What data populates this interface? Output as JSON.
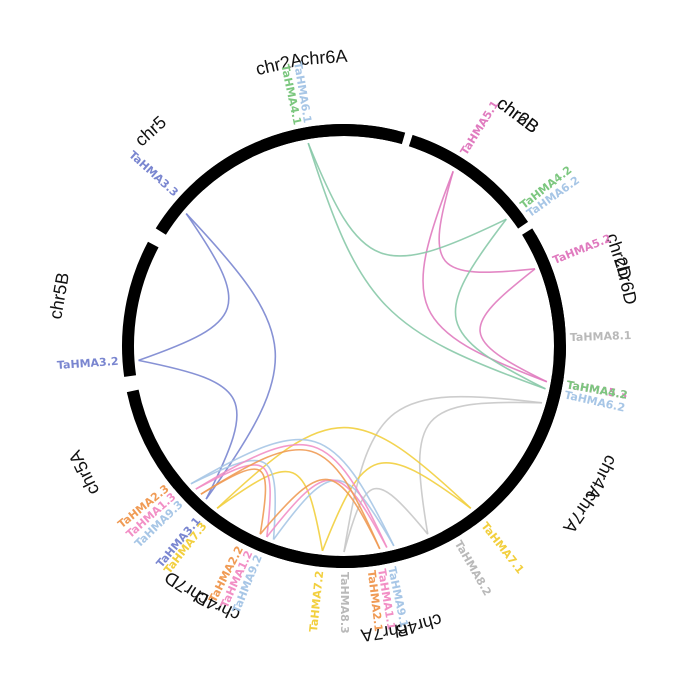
{
  "chromosomes": [
    {
      "name": "chr2A",
      "start": 318,
      "end": 376
    },
    {
      "name": "chr2B",
      "start": 380,
      "end": 414
    },
    {
      "name": "chr2D",
      "start": 418,
      "end": 446
    },
    {
      "name": "chr4A",
      "start": 450,
      "end": 504
    },
    {
      "name": "chr4B",
      "start": 508,
      "end": 542
    },
    {
      "name": "chr4D",
      "start": 546,
      "end": 586
    },
    {
      "name": "chr5A",
      "start": 590,
      "end": 618
    },
    {
      "name": "chr5B",
      "start": 622,
      "end": 658
    },
    {
      "name": "chr5",
      "start": 662,
      "end": 694
    },
    {
      "name": "chr6A",
      "start": 698,
      "end": 734
    },
    {
      "name": "chr6B",
      "start": 738,
      "end": 776
    },
    {
      "name": "chr6D",
      "start": 780,
      "end": 814
    },
    {
      "name": "chr7A",
      "start": 818,
      "end": 872
    },
    {
      "name": "chr7A",
      "start": 876,
      "end": 908
    },
    {
      "name": "chr7D",
      "start": 912,
      "end": 954
    }
  ],
  "genes": [
    {
      "name": "TaHMA5.1",
      "pos": 392,
      "color": "#e07bbf"
    },
    {
      "name": "TaHMA5.2",
      "pos": 428,
      "color": "#e07bbf"
    },
    {
      "name": "TaHMA5.3",
      "pos": 460,
      "color": "#e07bbf"
    },
    {
      "name": "TaHMA8.1",
      "pos": 448,
      "color": "#b9b9b9"
    },
    {
      "name": "TaHMA8.2",
      "pos": 510,
      "color": "#b9b9b9"
    },
    {
      "name": "TaHMA8.3",
      "pos": 540,
      "color": "#b9b9b9"
    },
    {
      "name": "TaHMA3.1",
      "pos": 580,
      "color": "#7a86d0"
    },
    {
      "name": "TaHMA3.2",
      "pos": 626,
      "color": "#7a86d0"
    },
    {
      "name": "TaHMA3.3",
      "pos": 672,
      "color": "#7a86d0"
    },
    {
      "name": "TaHMA4.1",
      "pos": 708,
      "color": "#7cc77f"
    },
    {
      "name": "TaHMA6.1",
      "pos": 708,
      "color": "#a7c6e6"
    },
    {
      "name": "TaHMA4.2",
      "pos": 772,
      "color": "#7cc77f"
    },
    {
      "name": "TaHMA6.2",
      "pos": 772,
      "color": "#a7c6e6"
    },
    {
      "name": "TaHMA4.2",
      "pos": 820,
      "color": "#7cc77f"
    },
    {
      "name": "TaHMA6.2",
      "pos": 820,
      "color": "#a7c6e6"
    },
    {
      "name": "TaHMA7.1",
      "pos": 862,
      "color": "#f2cf3e"
    },
    {
      "name": "TaHMA9.1",
      "pos": 888,
      "color": "#a7c6e6"
    },
    {
      "name": "TaHMA1.1",
      "pos": 888,
      "color": "#f28fc5"
    },
    {
      "name": "TaHMA2.1",
      "pos": 888,
      "color": "#f09b55"
    },
    {
      "name": "TaHMA7.2",
      "pos": 906,
      "color": "#f2cf3e"
    },
    {
      "name": "TaHMA9.2",
      "pos": 922,
      "color": "#a7c6e6"
    },
    {
      "name": "TaHMA1.2",
      "pos": 922,
      "color": "#f28fc5"
    },
    {
      "name": "TaHMA2.2",
      "pos": 922,
      "color": "#f09b55"
    },
    {
      "name": "TaHMA7.3",
      "pos": 938,
      "color": "#f2cf3e"
    },
    {
      "name": "TaHMA9.3",
      "pos": 946,
      "color": "#a7c6e6"
    },
    {
      "name": "TaHMA1.3",
      "pos": 946,
      "color": "#f28fc5"
    },
    {
      "name": "TaHMA2.3",
      "pos": 946,
      "color": "#f09b55"
    }
  ],
  "links": [
    {
      "from": 392,
      "to": 428,
      "color": "#e07bbf"
    },
    {
      "from": 392,
      "to": 460,
      "color": "#e07bbf"
    },
    {
      "from": 428,
      "to": 460,
      "color": "#e07bbf"
    },
    {
      "from": 466,
      "to": 516,
      "color": "#c8c8c8"
    },
    {
      "from": 466,
      "to": 540,
      "color": "#c8c8c8"
    },
    {
      "from": 516,
      "to": 540,
      "color": "#c8c8c8"
    },
    {
      "from": 582,
      "to": 626,
      "color": "#7a86d0"
    },
    {
      "from": 582,
      "to": 670,
      "color": "#7a86d0"
    },
    {
      "from": 626,
      "to": 670,
      "color": "#7a86d0"
    },
    {
      "from": 710,
      "to": 772,
      "color": "#88c9a8"
    },
    {
      "from": 710,
      "to": 822,
      "color": "#88c9a8"
    },
    {
      "from": 772,
      "to": 822,
      "color": "#88c9a8"
    },
    {
      "from": 862,
      "to": 906,
      "color": "#f2cf3e"
    },
    {
      "from": 862,
      "to": 938,
      "color": "#f2cf3e"
    },
    {
      "from": 906,
      "to": 938,
      "color": "#f2cf3e"
    },
    {
      "from": 886,
      "to": 920,
      "color": "#a7c6e6"
    },
    {
      "from": 886,
      "to": 948,
      "color": "#a7c6e6"
    },
    {
      "from": 920,
      "to": 948,
      "color": "#a7c6e6"
    },
    {
      "from": 888,
      "to": 922,
      "color": "#f28fc5"
    },
    {
      "from": 888,
      "to": 946,
      "color": "#f28fc5"
    },
    {
      "from": 922,
      "to": 946,
      "color": "#f28fc5"
    },
    {
      "from": 890,
      "to": 924,
      "color": "#f09b55"
    },
    {
      "from": 890,
      "to": 944,
      "color": "#f09b55"
    },
    {
      "from": 924,
      "to": 944,
      "color": "#f09b55"
    }
  ]
}
